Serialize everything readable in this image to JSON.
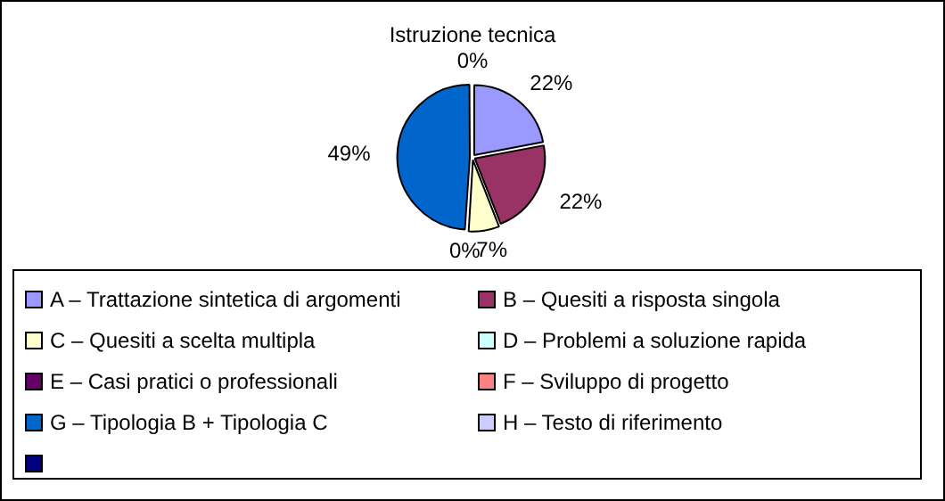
{
  "chart_data": {
    "type": "pie",
    "title": "Istruzione tecnica",
    "categories": [
      "A – Trattazione sintetica di argomenti",
      "B – Quesiti a risposta singola",
      "C – Quesiti a scelta multipla",
      "D – Problemi a soluzione rapida",
      "E – Casi pratici o professionali",
      "F – Sviluppo di progetto",
      "G – Tipologia B + Tipologia C",
      "H – Testo di riferimento",
      null
    ],
    "values": [
      22,
      22,
      7,
      0,
      0,
      0,
      49,
      0,
      0
    ],
    "colors": [
      "#9999ff",
      "#993366",
      "#ffffcc",
      "#ccffff",
      "#660066",
      "#ff8080",
      "#0066cc",
      "#ccccff",
      "#000080"
    ],
    "value_labels": [
      "22%",
      "22%",
      "7%",
      "0%",
      null,
      null,
      "49%",
      null,
      "0%"
    ],
    "legend": "bottom"
  }
}
